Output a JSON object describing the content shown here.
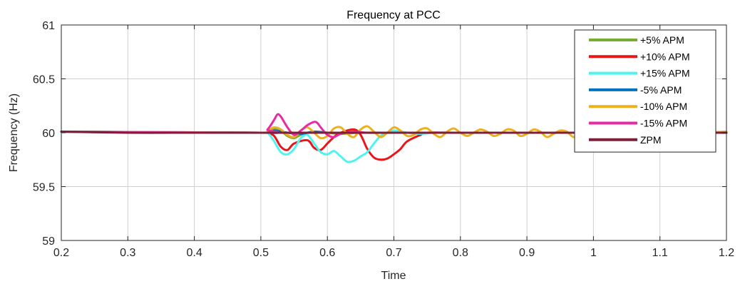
{
  "chart_data": {
    "type": "line",
    "title": "Frequency at PCC",
    "xlabel": "Time",
    "ylabel": "Frequency (Hz)",
    "xlim": [
      0.2,
      1.2
    ],
    "ylim": [
      59,
      61
    ],
    "xticks": [
      0.2,
      0.3,
      0.4,
      0.5,
      0.6,
      0.7,
      0.8,
      0.9,
      1,
      1.1,
      1.2
    ],
    "xtick_labels": [
      "0.2",
      "0.3",
      "0.4",
      "0.5",
      "0.6",
      "0.7",
      "0.8",
      "0.9",
      "1",
      "1.1",
      "1.2"
    ],
    "yticks": [
      59,
      59.5,
      60,
      60.5,
      61
    ],
    "ytick_labels": [
      "59",
      "59.5",
      "60",
      "60.5",
      "61"
    ],
    "grid": true,
    "legend_position": "top-right",
    "series": [
      {
        "name": "+5% APM",
        "color": "#77ac30",
        "x": [
          0.2,
          0.5,
          0.51,
          0.52,
          0.53,
          0.54,
          0.55,
          0.56,
          0.58,
          0.6,
          0.62,
          0.65,
          0.7,
          0.75,
          0.8,
          0.9,
          1.0,
          1.2
        ],
        "y": [
          60.01,
          60.0,
          60.0,
          60.03,
          60.02,
          59.97,
          59.95,
          59.98,
          60.01,
          60.0,
          59.99,
          60.0,
          60.0,
          60.0,
          60.0,
          60.0,
          60.0,
          60.0
        ]
      },
      {
        "name": "+10% APM",
        "color": "#e8151b",
        "x": [
          0.2,
          0.5,
          0.51,
          0.52,
          0.53,
          0.54,
          0.55,
          0.57,
          0.58,
          0.59,
          0.6,
          0.61,
          0.62,
          0.64,
          0.65,
          0.66,
          0.67,
          0.68,
          0.69,
          0.7,
          0.71,
          0.72,
          0.74,
          0.75,
          0.8,
          0.9,
          1.0,
          1.1,
          1.2
        ],
        "y": [
          60.01,
          60.0,
          60.0,
          59.97,
          59.87,
          59.84,
          59.9,
          59.93,
          59.86,
          59.84,
          59.9,
          59.96,
          60.0,
          60.03,
          59.98,
          59.85,
          59.77,
          59.75,
          59.76,
          59.8,
          59.85,
          59.92,
          59.98,
          60.0,
          60.0,
          60.0,
          60.0,
          60.0,
          60.0
        ]
      },
      {
        "name": "+15% APM",
        "color": "#4ef5f0",
        "x": [
          0.2,
          0.5,
          0.51,
          0.52,
          0.53,
          0.54,
          0.55,
          0.56,
          0.57,
          0.58,
          0.59,
          0.6,
          0.61,
          0.62,
          0.63,
          0.64,
          0.65,
          0.66,
          0.67,
          0.68,
          0.69,
          0.7,
          0.72,
          0.74,
          0.76,
          0.8,
          0.9,
          1.0,
          1.2
        ],
        "y": [
          60.01,
          60.0,
          60.0,
          59.92,
          59.82,
          59.8,
          59.85,
          59.95,
          59.98,
          59.9,
          59.82,
          59.8,
          59.83,
          59.78,
          59.73,
          59.74,
          59.78,
          59.82,
          59.9,
          59.97,
          60.0,
          60.02,
          60.0,
          59.99,
          60.0,
          60.0,
          60.0,
          60.0,
          60.0
        ]
      },
      {
        "name": "-5% APM",
        "color": "#0072bd",
        "x": [
          0.2,
          0.5,
          0.52,
          0.54,
          0.56,
          0.58,
          0.6,
          0.65,
          0.7,
          0.8,
          0.9,
          1.0,
          1.1,
          1.2
        ],
        "y": [
          60.01,
          60.0,
          60.02,
          60.0,
          59.99,
          60.01,
          60.0,
          60.0,
          60.0,
          60.0,
          60.0,
          60.0,
          60.0,
          60.0
        ]
      },
      {
        "name": "-10% APM",
        "color": "#edb120",
        "x": [
          0.2,
          0.5,
          0.51,
          0.52,
          0.53,
          0.54,
          0.55,
          0.56,
          0.57,
          0.58,
          0.59,
          0.6,
          0.61,
          0.62,
          0.63,
          0.64,
          0.65,
          0.66,
          0.67,
          0.68,
          0.69,
          0.7,
          0.71,
          0.72,
          0.73,
          0.74,
          0.75,
          0.76,
          0.77,
          0.78,
          0.79,
          0.8,
          0.81,
          0.82,
          0.83,
          0.84,
          0.85,
          0.86,
          0.87,
          0.88,
          0.89,
          0.9,
          0.91,
          0.92,
          0.93,
          0.94,
          0.95,
          0.96,
          0.97,
          0.98,
          1.0,
          1.05,
          1.1,
          1.15,
          1.2
        ],
        "y": [
          60.01,
          60.0,
          60.02,
          60.05,
          60.03,
          59.98,
          59.96,
          60.02,
          60.05,
          60.0,
          59.95,
          59.97,
          60.04,
          60.05,
          59.99,
          59.96,
          60.03,
          60.06,
          60.01,
          59.96,
          60.0,
          60.05,
          60.02,
          59.97,
          59.98,
          60.03,
          60.04,
          59.99,
          59.96,
          60.01,
          60.04,
          60.0,
          59.97,
          60.0,
          60.03,
          60.01,
          59.97,
          59.99,
          60.03,
          60.02,
          59.97,
          59.99,
          60.03,
          60.01,
          59.96,
          59.99,
          60.02,
          60.01,
          59.96,
          59.99,
          60.02,
          60.0,
          60.0,
          60.0,
          60.01
        ]
      },
      {
        "name": "-15% APM",
        "color": "#e82ba5",
        "x": [
          0.2,
          0.5,
          0.51,
          0.52,
          0.525,
          0.53,
          0.54,
          0.55,
          0.56,
          0.57,
          0.58,
          0.585,
          0.59,
          0.6,
          0.61,
          0.62,
          0.64,
          0.66,
          0.7,
          0.8,
          0.9,
          1.0,
          1.2
        ],
        "y": [
          60.01,
          60.0,
          60.03,
          60.12,
          60.17,
          60.15,
          60.05,
          59.98,
          60.02,
          60.07,
          60.1,
          60.09,
          60.05,
          59.98,
          59.96,
          59.99,
          60.01,
          60.0,
          60.0,
          60.0,
          60.0,
          60.0,
          60.0
        ]
      },
      {
        "name": "ZPM",
        "color": "#7e1f3a",
        "x": [
          0.2,
          0.3,
          0.4,
          0.5,
          0.55,
          0.6,
          0.65,
          0.7,
          0.8,
          0.9,
          1.0,
          1.1,
          1.2
        ],
        "y": [
          60.01,
          60.0,
          60.0,
          60.0,
          60.0,
          60.0,
          60.0,
          60.0,
          60.0,
          60.0,
          60.0,
          60.0,
          60.0
        ]
      }
    ]
  }
}
